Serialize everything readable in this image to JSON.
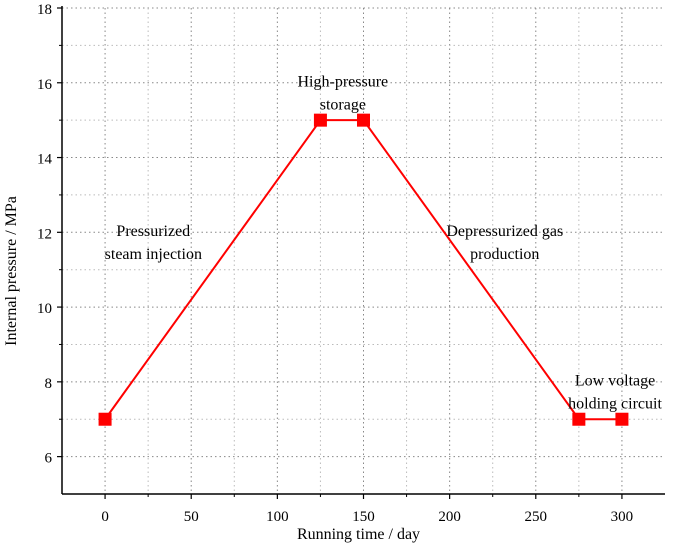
{
  "chart_data": {
    "type": "line",
    "title": "",
    "xlabel": "Running time / day",
    "ylabel": "Internal pressure / MPa",
    "xlim": [
      -25,
      325
    ],
    "ylim": [
      5,
      18
    ],
    "xticks": [
      0,
      50,
      100,
      150,
      200,
      250,
      300
    ],
    "yticks": [
      6,
      8,
      10,
      12,
      14,
      16,
      18
    ],
    "x_tick_labels": [
      "0",
      "50",
      "100",
      "150",
      "200",
      "250",
      "300"
    ],
    "y_tick_labels": [
      "6",
      "8",
      "10",
      "12",
      "14",
      "16",
      "18"
    ],
    "grid": true,
    "series": [
      {
        "x": [
          0,
          125,
          150,
          275,
          300
        ],
        "y": [
          7,
          15,
          15,
          7,
          7
        ],
        "color": "#ff0000",
        "marker": "square"
      }
    ],
    "annotations": [
      {
        "lines": [
          "Pressurized",
          "steam injection"
        ],
        "x": 28,
        "y": 11.9
      },
      {
        "lines": [
          "High-pressure",
          "storage"
        ],
        "x": 138,
        "y": 15.9
      },
      {
        "lines": [
          "Depressurized gas",
          "production"
        ],
        "x": 232,
        "y": 11.9
      },
      {
        "lines": [
          "Low voltage",
          "holding circuit"
        ],
        "x": 296,
        "y": 7.9
      }
    ]
  }
}
